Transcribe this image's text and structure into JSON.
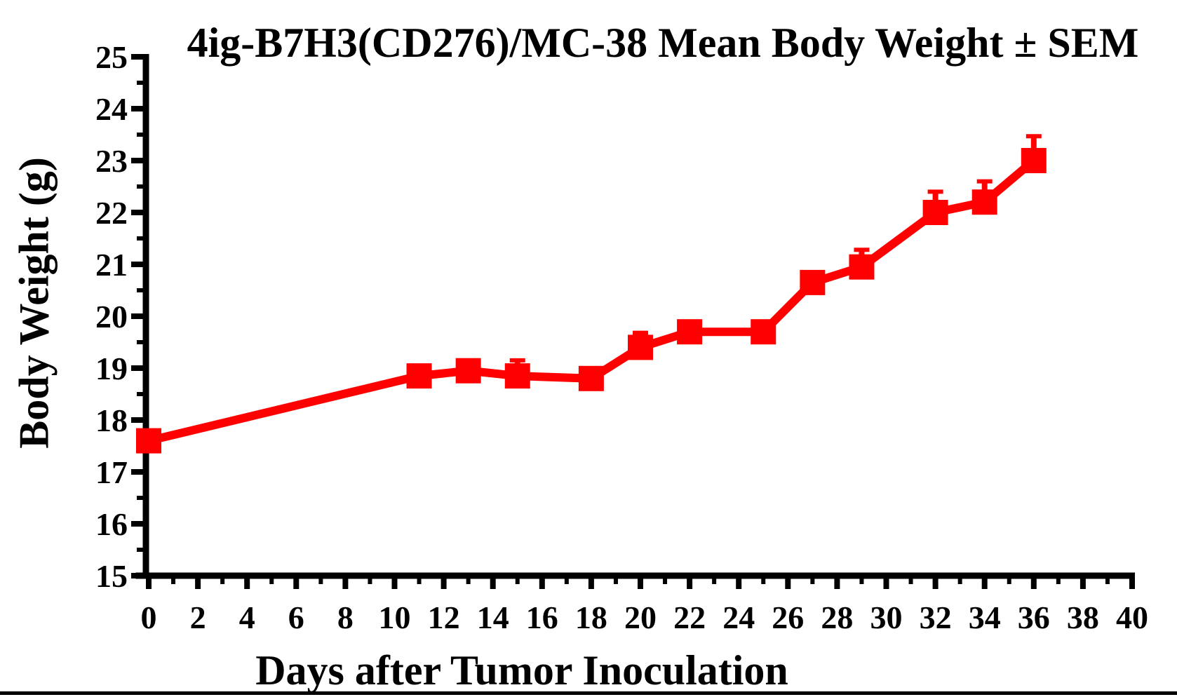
{
  "colors": {
    "series": "#ff0000",
    "axis": "#000000",
    "background": "#ffffff",
    "bottom_rule": "#000000"
  },
  "chart_data": {
    "type": "line",
    "title": "4ig-B7H3(CD276)/MC-38 Mean Body Weight ± SEM",
    "xlabel": "Days after Tumor Inoculation",
    "ylabel": "Body Weight (g)",
    "xlim": [
      0,
      40
    ],
    "ylim": [
      15,
      25
    ],
    "x_major_tick_step": 2,
    "x_minor_tick_step": 1,
    "y_major_tick_step": 1,
    "y_minor_tick_step": 0.5,
    "x_tick_labels": [
      "0",
      "2",
      "4",
      "6",
      "8",
      "10",
      "12",
      "14",
      "16",
      "18",
      "20",
      "22",
      "24",
      "26",
      "28",
      "30",
      "32",
      "34",
      "36",
      "38",
      "40"
    ],
    "y_tick_labels": [
      "15",
      "16",
      "17",
      "18",
      "19",
      "20",
      "21",
      "22",
      "23",
      "24",
      "25"
    ],
    "grid": false,
    "legend": false,
    "error_bars": "upper SEM caps only (lower halves hidden behind markers)",
    "series": [
      {
        "name": "Mean Body Weight ± SEM",
        "color": "#ff0000",
        "marker": "square",
        "x": [
          0,
          11,
          13,
          15,
          18,
          20,
          22,
          25,
          27,
          29,
          32,
          34,
          36
        ],
        "y": [
          17.6,
          18.85,
          18.95,
          18.85,
          18.8,
          19.4,
          19.7,
          19.7,
          20.65,
          20.95,
          22.0,
          22.2,
          23.0
        ],
        "sem": [
          0.15,
          0.15,
          0.15,
          0.3,
          0.15,
          0.28,
          0.15,
          0.15,
          0.15,
          0.33,
          0.4,
          0.4,
          0.47
        ]
      }
    ]
  }
}
